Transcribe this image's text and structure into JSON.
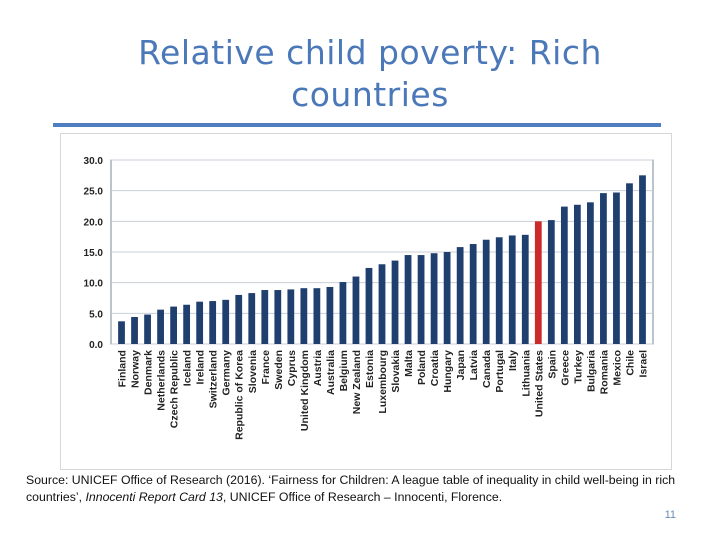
{
  "title": "Relative child poverty: Rich countries",
  "source": {
    "prefix": "Source: UNICEF Office of Research (2016). ‘Fairness for Children: A league table of inequality in child well-being in rich countries’, ",
    "italic": "Innocenti Report Card 13",
    "suffix": ", UNICEF Office of Research – Innocenti, Florence."
  },
  "page_number": "11",
  "colors": {
    "title": "#4a78b8",
    "bar": "#1f3f6e",
    "highlight": "#cc2a2a",
    "grid": "#c8cfd8"
  },
  "chart_data": {
    "type": "bar",
    "title": "",
    "xlabel": "",
    "ylabel": "",
    "ylim": [
      0,
      30
    ],
    "yticks": [
      "0.0",
      "5.0",
      "10.0",
      "15.0",
      "20.0",
      "25.0",
      "30.0"
    ],
    "grid": true,
    "highlight_category": "United States",
    "categories": [
      "Finland",
      "Norway",
      "Denmark",
      "Netherlands",
      "Czech Republic",
      "Iceland",
      "Ireland",
      "Switzerland",
      "Germany",
      "Republic of Korea",
      "Slovenia",
      "France",
      "Sweden",
      "Cyprus",
      "United Kingdom",
      "Austria",
      "Australia",
      "Belgium",
      "New Zealand",
      "Estonia",
      "Luxembourg",
      "Slovakia",
      "Malta",
      "Poland",
      "Croatia",
      "Hungary",
      "Japan",
      "Latvia",
      "Canada",
      "Portugal",
      "Italy",
      "Lithuania",
      "United States",
      "Spain",
      "Greece",
      "Turkey",
      "Bulgaria",
      "Romania",
      "Mexico",
      "Chile",
      "Israel"
    ],
    "values": [
      3.7,
      4.4,
      4.8,
      5.6,
      6.1,
      6.4,
      6.9,
      7.0,
      7.2,
      8.0,
      8.3,
      8.8,
      8.8,
      8.9,
      9.1,
      9.1,
      9.3,
      10.1,
      11.0,
      12.4,
      13.0,
      13.6,
      14.5,
      14.5,
      14.8,
      15.0,
      15.8,
      16.3,
      17.0,
      17.4,
      17.7,
      17.8,
      20.0,
      20.2,
      22.4,
      22.7,
      23.1,
      24.6,
      24.7,
      26.2,
      27.5
    ]
  }
}
